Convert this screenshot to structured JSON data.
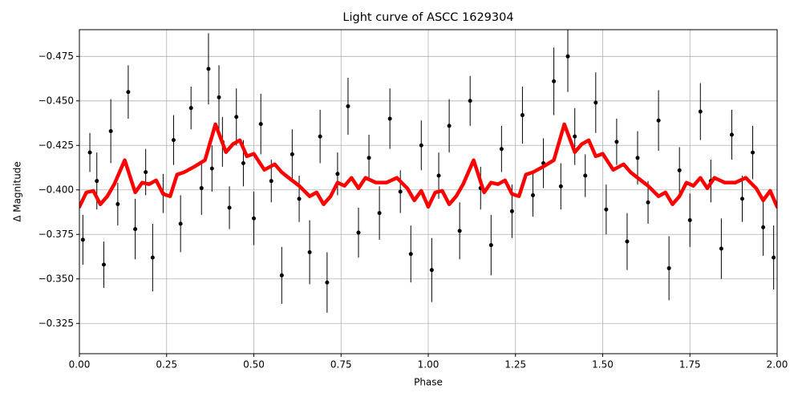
{
  "chart_data": {
    "type": "errorbar-line",
    "title": "Light curve of ASCC 1629304",
    "x_label": "Phase",
    "y_label": "Δ Magnitude",
    "xlim": [
      0,
      2
    ],
    "ylim": [
      -0.308,
      -0.49
    ],
    "xticks": [
      {
        "value": 0,
        "label": "0.00"
      },
      {
        "value": 0.25,
        "label": "0.25"
      },
      {
        "value": 0.5,
        "label": "0.50"
      },
      {
        "value": 0.75,
        "label": "0.75"
      },
      {
        "value": 1,
        "label": "1.00"
      },
      {
        "value": 1.25,
        "label": "1.25"
      },
      {
        "value": 1.5,
        "label": "1.50"
      },
      {
        "value": 1.75,
        "label": "1.75"
      },
      {
        "value": 2,
        "label": "2.00"
      }
    ],
    "yticks": [
      {
        "value": -0.475,
        "label": "−0.475"
      },
      {
        "value": -0.45,
        "label": "−0.450"
      },
      {
        "value": -0.425,
        "label": "−0.425"
      },
      {
        "value": -0.4,
        "label": "−0.400"
      },
      {
        "value": -0.375,
        "label": "−0.375"
      },
      {
        "value": -0.35,
        "label": "−0.350"
      },
      {
        "value": -0.325,
        "label": "−0.325"
      }
    ],
    "grid": true,
    "scatter": {
      "color": "#000000",
      "x": [
        0.01,
        0.03,
        0.05,
        0.07,
        0.09,
        0.11,
        0.14,
        0.16,
        0.19,
        0.21,
        0.24,
        0.27,
        0.29,
        0.32,
        0.35,
        0.37,
        0.38,
        0.4,
        0.41,
        0.43,
        0.45,
        0.47,
        0.5,
        0.52,
        0.55,
        0.58,
        0.61,
        0.63,
        0.66,
        0.69,
        0.71,
        0.74,
        0.77,
        0.8,
        0.83,
        0.86,
        0.89,
        0.92,
        0.95,
        0.98,
        1.01,
        1.03,
        1.06,
        1.09,
        1.12,
        1.15,
        1.18,
        1.21,
        1.24,
        1.27,
        1.3,
        1.33,
        1.36,
        1.38,
        1.4,
        1.42,
        1.45,
        1.48,
        1.51,
        1.54,
        1.57,
        1.6,
        1.63,
        1.66,
        1.69,
        1.72,
        1.75,
        1.78,
        1.81,
        1.84,
        1.87,
        1.9,
        1.93,
        1.96,
        1.99
      ],
      "values": [
        -0.372,
        -0.421,
        -0.405,
        -0.358,
        -0.433,
        -0.392,
        -0.455,
        -0.378,
        -0.41,
        -0.362,
        -0.398,
        -0.428,
        -0.381,
        -0.446,
        -0.401,
        -0.468,
        -0.412,
        -0.452,
        -0.427,
        -0.39,
        -0.441,
        -0.415,
        -0.384,
        -0.437,
        -0.405,
        -0.352,
        -0.42,
        -0.395,
        -0.365,
        -0.43,
        -0.348,
        -0.409,
        -0.447,
        -0.376,
        -0.418,
        -0.387,
        -0.44,
        -0.399,
        -0.364,
        -0.425,
        -0.355,
        -0.408,
        -0.436,
        -0.377,
        -0.45,
        -0.401,
        -0.369,
        -0.423,
        -0.388,
        -0.442,
        -0.397,
        -0.415,
        -0.461,
        -0.402,
        -0.475,
        -0.43,
        -0.408,
        -0.449,
        -0.389,
        -0.427,
        -0.371,
        -0.418,
        -0.393,
        -0.439,
        -0.356,
        -0.411,
        -0.383,
        -0.444,
        -0.405,
        -0.367,
        -0.431,
        -0.395,
        -0.421,
        -0.379,
        -0.362
      ],
      "errors": [
        0.014,
        0.011,
        0.016,
        0.013,
        0.018,
        0.012,
        0.015,
        0.017,
        0.013,
        0.019,
        0.011,
        0.014,
        0.016,
        0.012,
        0.015,
        0.02,
        0.013,
        0.018,
        0.014,
        0.012,
        0.016,
        0.013,
        0.015,
        0.017,
        0.012,
        0.016,
        0.014,
        0.013,
        0.018,
        0.015,
        0.017,
        0.012,
        0.016,
        0.014,
        0.013,
        0.015,
        0.017,
        0.012,
        0.016,
        0.014,
        0.018,
        0.013,
        0.015,
        0.016,
        0.014,
        0.012,
        0.017,
        0.013,
        0.015,
        0.016,
        0.012,
        0.014,
        0.019,
        0.013,
        0.02,
        0.016,
        0.012,
        0.017,
        0.014,
        0.013,
        0.016,
        0.015,
        0.012,
        0.017,
        0.018,
        0.013,
        0.015,
        0.016,
        0.012,
        0.017,
        0.014,
        0.013,
        0.015,
        0.016,
        0.018
      ]
    },
    "curve": {
      "color": "#ff0000",
      "x": [
        0,
        0.02,
        0.04,
        0.06,
        0.08,
        0.1,
        0.13,
        0.16,
        0.18,
        0.2,
        0.22,
        0.24,
        0.26,
        0.28,
        0.3,
        0.33,
        0.36,
        0.39,
        0.42,
        0.44,
        0.46,
        0.48,
        0.5,
        0.53,
        0.56,
        0.58,
        0.6,
        0.63,
        0.66,
        0.68,
        0.7,
        0.72,
        0.74,
        0.76,
        0.78,
        0.8,
        0.82,
        0.85,
        0.88,
        0.91,
        0.94,
        0.96,
        0.98,
        1.0,
        1.02,
        1.04,
        1.06,
        1.08,
        1.1,
        1.13,
        1.16,
        1.18,
        1.2,
        1.22,
        1.24,
        1.26,
        1.28,
        1.3,
        1.33,
        1.36,
        1.39,
        1.42,
        1.44,
        1.46,
        1.48,
        1.5,
        1.53,
        1.56,
        1.58,
        1.6,
        1.63,
        1.66,
        1.68,
        1.7,
        1.72,
        1.74,
        1.76,
        1.78,
        1.8,
        1.82,
        1.85,
        1.88,
        1.91,
        1.94,
        1.96,
        1.98,
        2.0
      ],
      "values": [
        -0.3905,
        -0.3986,
        -0.3995,
        -0.3919,
        -0.3964,
        -0.4032,
        -0.4167,
        -0.3986,
        -0.4041,
        -0.4032,
        -0.4054,
        -0.3977,
        -0.3964,
        -0.4086,
        -0.4099,
        -0.4131,
        -0.4167,
        -0.4369,
        -0.4212,
        -0.4257,
        -0.4279,
        -0.4189,
        -0.4203,
        -0.4113,
        -0.4144,
        -0.4099,
        -0.4068,
        -0.4023,
        -0.3964,
        -0.3986,
        -0.3919,
        -0.3964,
        -0.4041,
        -0.4023,
        -0.4068,
        -0.4009,
        -0.4068,
        -0.4041,
        -0.4041,
        -0.4068,
        -0.4009,
        -0.3941,
        -0.3995,
        -0.3905,
        -0.3986,
        -0.3995,
        -0.3919,
        -0.3964,
        -0.4032,
        -0.4167,
        -0.3986,
        -0.4041,
        -0.4032,
        -0.4054,
        -0.3977,
        -0.3964,
        -0.4086,
        -0.4099,
        -0.4131,
        -0.4167,
        -0.4369,
        -0.4212,
        -0.4257,
        -0.4279,
        -0.4189,
        -0.4203,
        -0.4113,
        -0.4144,
        -0.4099,
        -0.4068,
        -0.4023,
        -0.3964,
        -0.3986,
        -0.3919,
        -0.3964,
        -0.4041,
        -0.4023,
        -0.4068,
        -0.4009,
        -0.4068,
        -0.4041,
        -0.4041,
        -0.4068,
        -0.4009,
        -0.3941,
        -0.3995,
        -0.3905
      ]
    }
  }
}
